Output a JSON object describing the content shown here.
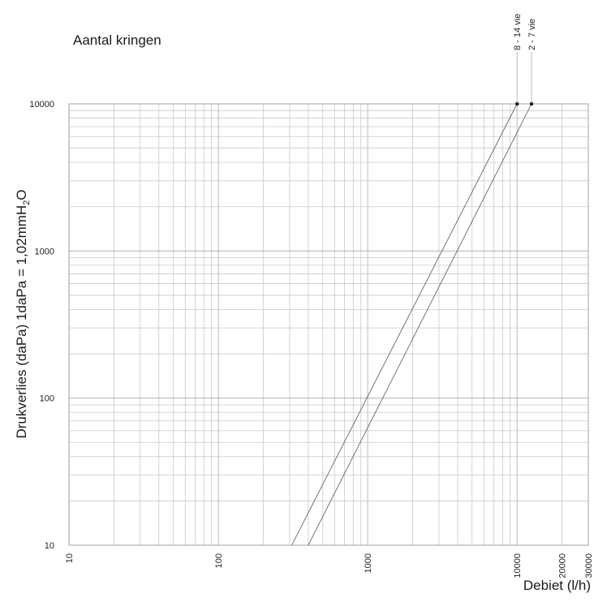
{
  "chart_data": {
    "type": "line",
    "title": "Aantal kringen",
    "xlabel": "Debiet (l/h)",
    "ylabel": "Drukverlies (daPa) 1daPa = 1,02mmH",
    "ylabel_sub": "2",
    "ylabel_end": "O",
    "x_scale": "log",
    "y_scale": "log",
    "xlim": [
      10,
      30000
    ],
    "ylim": [
      10,
      10000
    ],
    "grid": true,
    "x_ticks": [
      10,
      100,
      1000,
      10000,
      20000,
      30000
    ],
    "y_ticks": [
      10,
      100,
      1000,
      10000
    ],
    "series": [
      {
        "name": "8 - 14 vie",
        "x": [
          310,
          10000
        ],
        "y": [
          10,
          10000
        ]
      },
      {
        "name": "2 - 7 vie",
        "x": [
          400,
          12500
        ],
        "y": [
          10,
          10000
        ]
      }
    ]
  }
}
